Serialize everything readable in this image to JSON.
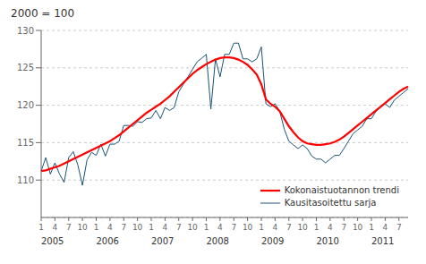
{
  "chart_data": {
    "type": "line",
    "title": "2000 = 100",
    "categories": [
      "1",
      null,
      null,
      "4",
      null,
      null,
      "7",
      null,
      null,
      "10",
      null,
      null,
      "1",
      null,
      null,
      "4",
      null,
      null,
      "7",
      null,
      null,
      "10",
      null,
      null,
      "1",
      null,
      null,
      "4",
      null,
      null,
      "7",
      null,
      null,
      "10",
      null,
      null,
      "1",
      null,
      null,
      "4",
      null,
      null,
      "7",
      null,
      null,
      "10",
      null,
      null,
      "1",
      null,
      null,
      "4",
      null,
      null,
      "7",
      null,
      null,
      "10",
      null,
      null,
      "1",
      null,
      null,
      "4",
      null,
      null,
      "7",
      null,
      null,
      "10",
      null,
      null,
      "1",
      null,
      null,
      "4",
      null,
      null,
      "7",
      null,
      null
    ],
    "series": [
      {
        "name": "Kokonaistuotannon trendi",
        "color": "#ff0000",
        "values": [
          111.2,
          111.3,
          111.5,
          111.7,
          111.9,
          112.2,
          112.5,
          112.8,
          113.1,
          113.4,
          113.7,
          114.0,
          114.3,
          114.6,
          114.9,
          115.2,
          115.6,
          116.0,
          116.5,
          117.0,
          117.5,
          118.0,
          118.5,
          119.0,
          119.4,
          119.8,
          120.2,
          120.7,
          121.2,
          121.8,
          122.4,
          123.0,
          123.6,
          124.2,
          124.7,
          125.1,
          125.5,
          125.8,
          126.1,
          126.3,
          126.4,
          126.4,
          126.3,
          126.1,
          125.8,
          125.4,
          124.8,
          124.1,
          122.8,
          120.8,
          120.2,
          119.8,
          119.2,
          118.2,
          117.2,
          116.4,
          115.7,
          115.2,
          114.9,
          114.8,
          114.7,
          114.7,
          114.8,
          114.9,
          115.1,
          115.4,
          115.8,
          116.3,
          116.8,
          117.3,
          117.8,
          118.3,
          118.8,
          119.3,
          119.8,
          120.3,
          120.8,
          121.3,
          121.8,
          122.2,
          122.5
        ]
      },
      {
        "name": "Kausitasoitettu sarja",
        "color": "#1a5276",
        "values": [
          111.2,
          113.0,
          110.8,
          112.3,
          110.8,
          109.7,
          113.0,
          113.8,
          112.0,
          109.3,
          112.7,
          113.7,
          113.3,
          114.8,
          113.2,
          114.8,
          114.8,
          115.2,
          117.3,
          117.3,
          117.2,
          117.8,
          117.7,
          118.2,
          118.3,
          119.3,
          118.2,
          119.7,
          119.3,
          119.7,
          121.8,
          122.8,
          123.8,
          124.8,
          125.8,
          126.3,
          126.8,
          119.5,
          126.2,
          123.8,
          126.8,
          126.8,
          128.3,
          128.3,
          126.2,
          126.2,
          125.8,
          126.2,
          127.8,
          120.2,
          119.8,
          120.2,
          119.2,
          116.8,
          115.2,
          114.7,
          114.2,
          114.7,
          114.2,
          113.2,
          112.8,
          112.8,
          112.3,
          112.8,
          113.3,
          113.3,
          114.2,
          115.2,
          116.2,
          116.7,
          117.2,
          118.2,
          118.2,
          119.2,
          119.7,
          120.2,
          119.7,
          120.7,
          121.2,
          121.7,
          122.2
        ]
      }
    ],
    "annotations": [
      {
        "x": 0,
        "text": "2005"
      },
      {
        "x": 12,
        "text": "2006"
      },
      {
        "x": 24,
        "text": "2007"
      },
      {
        "x": 36,
        "text": "2008"
      },
      {
        "x": 48,
        "text": "2009"
      },
      {
        "x": 60,
        "text": "2010"
      },
      {
        "x": 72,
        "text": "2011"
      }
    ],
    "ylim": [
      105,
      130
    ],
    "yticks": [
      110,
      115,
      120,
      125,
      130
    ],
    "grid": true,
    "legend": "lower right"
  }
}
